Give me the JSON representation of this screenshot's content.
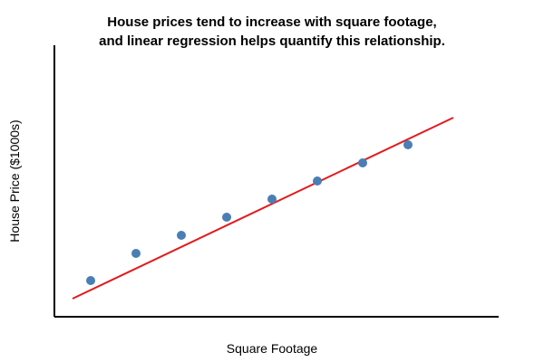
{
  "chart_data": {
    "type": "scatter",
    "title": [
      "House prices tend to increase with square footage,",
      "and linear regression helps quantify this relationship."
    ],
    "xlabel": "Square Footage",
    "ylabel": "House Price ($1000s)",
    "xlim": [
      0,
      490
    ],
    "ylim": [
      0,
      300
    ],
    "grid": false,
    "series": [
      {
        "x": [
          40,
          90,
          140,
          190,
          240,
          290,
          340,
          390
        ],
        "y": [
          40,
          70,
          90,
          110,
          130,
          150,
          170,
          190
        ],
        "color": "#4a7eb5"
      }
    ],
    "regression_line": {
      "x": [
        20,
        440
      ],
      "y": [
        20,
        220
      ],
      "color": "#e31a1c"
    }
  }
}
